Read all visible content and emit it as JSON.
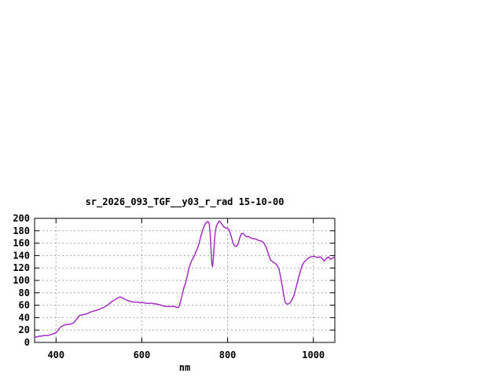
{
  "window": {
    "background": "#ffffff"
  },
  "chart": {
    "title": "sr_2026_093_TGF__y03_r_rad 15-10-00",
    "xlabel": "nm"
  },
  "style": {
    "line_color": "#A020C0",
    "grid_color": "#A9A9A9",
    "axis_color": "#000000",
    "text_color": "#000000"
  },
  "chart_data": {
    "type": "line",
    "title": "sr_2026_093_TGF__y03_r_rad 15-10-00",
    "xlabel": "nm",
    "ylabel": "",
    "xlim": [
      350,
      1050
    ],
    "ylim": [
      0,
      200
    ],
    "x_ticks": [
      400,
      600,
      800,
      1000
    ],
    "y_ticks": [
      0,
      20,
      40,
      60,
      80,
      100,
      120,
      140,
      160,
      180,
      200
    ],
    "grid": true,
    "legend_position": "none",
    "series": [
      {
        "name": "sr_2026_093_TGF__y03_r_rad 15-10-00",
        "color": "#A020C0",
        "points": [
          [
            350,
            8
          ],
          [
            355,
            9
          ],
          [
            360,
            10
          ],
          [
            365,
            10
          ],
          [
            370,
            11
          ],
          [
            375,
            11
          ],
          [
            380,
            11
          ],
          [
            385,
            12
          ],
          [
            390,
            13
          ],
          [
            395,
            14
          ],
          [
            400,
            16
          ],
          [
            403,
            18
          ],
          [
            406,
            21
          ],
          [
            410,
            24
          ],
          [
            413,
            26
          ],
          [
            416,
            27
          ],
          [
            420,
            28
          ],
          [
            425,
            29
          ],
          [
            430,
            29
          ],
          [
            435,
            30
          ],
          [
            440,
            31
          ],
          [
            443,
            33
          ],
          [
            446,
            36
          ],
          [
            450,
            39
          ],
          [
            453,
            42
          ],
          [
            456,
            44
          ],
          [
            460,
            44
          ],
          [
            465,
            45
          ],
          [
            470,
            46
          ],
          [
            475,
            47
          ],
          [
            480,
            49
          ],
          [
            485,
            50
          ],
          [
            490,
            51
          ],
          [
            495,
            52
          ],
          [
            500,
            53
          ],
          [
            505,
            55
          ],
          [
            510,
            56
          ],
          [
            515,
            58
          ],
          [
            520,
            60
          ],
          [
            525,
            63
          ],
          [
            530,
            66
          ],
          [
            535,
            68
          ],
          [
            540,
            70
          ],
          [
            545,
            72
          ],
          [
            548,
            73
          ],
          [
            552,
            73
          ],
          [
            556,
            71
          ],
          [
            560,
            70
          ],
          [
            565,
            68
          ],
          [
            570,
            67
          ],
          [
            575,
            66
          ],
          [
            580,
            65
          ],
          [
            585,
            65
          ],
          [
            590,
            65
          ],
          [
            595,
            64
          ],
          [
            600,
            64
          ],
          [
            605,
            64
          ],
          [
            610,
            63
          ],
          [
            615,
            63
          ],
          [
            620,
            63
          ],
          [
            625,
            63
          ],
          [
            630,
            62
          ],
          [
            635,
            62
          ],
          [
            640,
            61
          ],
          [
            645,
            60
          ],
          [
            650,
            59
          ],
          [
            655,
            58
          ],
          [
            660,
            58
          ],
          [
            665,
            58
          ],
          [
            670,
            58
          ],
          [
            675,
            58
          ],
          [
            680,
            57
          ],
          [
            684,
            56
          ],
          [
            687,
            58
          ],
          [
            690,
            65
          ],
          [
            694,
            76
          ],
          [
            698,
            88
          ],
          [
            702,
            96
          ],
          [
            706,
            107
          ],
          [
            710,
            120
          ],
          [
            714,
            128
          ],
          [
            718,
            134
          ],
          [
            722,
            139
          ],
          [
            726,
            146
          ],
          [
            730,
            152
          ],
          [
            734,
            161
          ],
          [
            738,
            172
          ],
          [
            742,
            181
          ],
          [
            745,
            187
          ],
          [
            748,
            191
          ],
          [
            751,
            194
          ],
          [
            754,
            195
          ],
          [
            757,
            192
          ],
          [
            759,
            180
          ],
          [
            761,
            155
          ],
          [
            763,
            128
          ],
          [
            765,
            122
          ],
          [
            767,
            138
          ],
          [
            769,
            160
          ],
          [
            771,
            176
          ],
          [
            773,
            185
          ],
          [
            776,
            191
          ],
          [
            779,
            194
          ],
          [
            781,
            196
          ],
          [
            784,
            194
          ],
          [
            788,
            189
          ],
          [
            792,
            186
          ],
          [
            796,
            184
          ],
          [
            800,
            184
          ],
          [
            804,
            181
          ],
          [
            808,
            172
          ],
          [
            812,
            162
          ],
          [
            816,
            156
          ],
          [
            820,
            155
          ],
          [
            824,
            158
          ],
          [
            828,
            168
          ],
          [
            832,
            175
          ],
          [
            836,
            176
          ],
          [
            840,
            173
          ],
          [
            844,
            170
          ],
          [
            848,
            171
          ],
          [
            852,
            169
          ],
          [
            856,
            168
          ],
          [
            860,
            167
          ],
          [
            865,
            167
          ],
          [
            870,
            165
          ],
          [
            875,
            164
          ],
          [
            880,
            163
          ],
          [
            885,
            160
          ],
          [
            890,
            153
          ],
          [
            895,
            143
          ],
          [
            900,
            133
          ],
          [
            905,
            130
          ],
          [
            910,
            128
          ],
          [
            915,
            125
          ],
          [
            920,
            118
          ],
          [
            924,
            104
          ],
          [
            928,
            89
          ],
          [
            932,
            72
          ],
          [
            935,
            64
          ],
          [
            938,
            62
          ],
          [
            942,
            62
          ],
          [
            946,
            64
          ],
          [
            950,
            69
          ],
          [
            954,
            74
          ],
          [
            958,
            84
          ],
          [
            962,
            95
          ],
          [
            966,
            106
          ],
          [
            970,
            115
          ],
          [
            974,
            124
          ],
          [
            978,
            129
          ],
          [
            982,
            132
          ],
          [
            986,
            135
          ],
          [
            990,
            137
          ],
          [
            995,
            138
          ],
          [
            1000,
            139
          ],
          [
            1005,
            138
          ],
          [
            1010,
            137
          ],
          [
            1015,
            138
          ],
          [
            1020,
            136
          ],
          [
            1025,
            131
          ],
          [
            1030,
            135
          ],
          [
            1035,
            138
          ],
          [
            1040,
            134
          ],
          [
            1045,
            136
          ],
          [
            1050,
            138
          ]
        ]
      }
    ]
  }
}
